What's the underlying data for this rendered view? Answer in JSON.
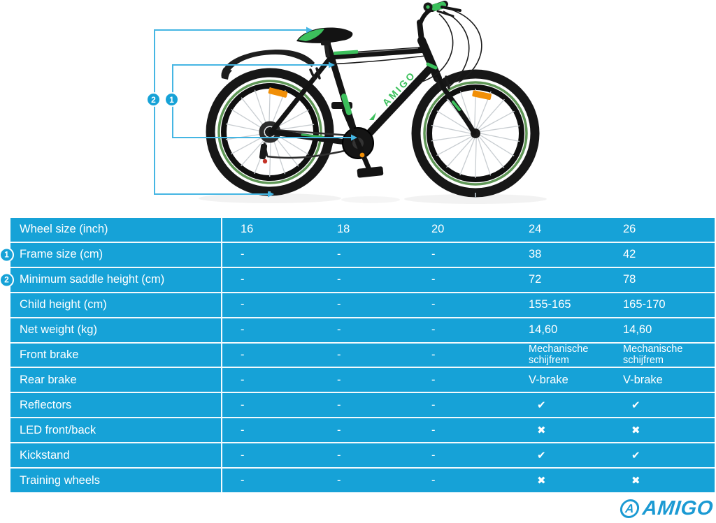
{
  "figure": {
    "frame_decal": "AMIGO",
    "marker_1": "1",
    "marker_2": "2"
  },
  "spec_table": {
    "rows": [
      {
        "label": "Wheel size (inch)",
        "badge": "",
        "values": [
          "16",
          "18",
          "20",
          "24",
          "26"
        ]
      },
      {
        "label": "Frame size (cm)",
        "badge": "1",
        "values": [
          "-",
          "-",
          "-",
          "38",
          "42"
        ]
      },
      {
        "label": "Minimum saddle height (cm)",
        "badge": "2",
        "values": [
          "-",
          "-",
          "-",
          "72",
          "78"
        ]
      },
      {
        "label": "Child height (cm)",
        "badge": "",
        "values": [
          "-",
          "-",
          "-",
          "155-165",
          "165-170"
        ]
      },
      {
        "label": "Net weight (kg)",
        "badge": "",
        "values": [
          "-",
          "-",
          "-",
          "14,60",
          "14,60"
        ]
      },
      {
        "label": "Front brake",
        "badge": "",
        "values": [
          "-",
          "-",
          "-",
          "Mechanische schijfrem",
          "Mechanische schijfrem"
        ]
      },
      {
        "label": "Rear brake",
        "badge": "",
        "values": [
          "-",
          "-",
          "-",
          "V-brake",
          "V-brake"
        ]
      },
      {
        "label": "Reflectors",
        "badge": "",
        "values": [
          "-",
          "-",
          "-",
          "✔",
          "✔"
        ]
      },
      {
        "label": "LED front/back",
        "badge": "",
        "values": [
          "-",
          "-",
          "-",
          "✖",
          "✖"
        ]
      },
      {
        "label": "Kickstand",
        "badge": "",
        "values": [
          "-",
          "-",
          "-",
          "✔",
          "✔"
        ]
      },
      {
        "label": "Training wheels",
        "badge": "",
        "values": [
          "-",
          "-",
          "-",
          "✖",
          "✖"
        ]
      }
    ]
  },
  "logo": {
    "mark_letter": "A",
    "wordmark": "AMIGO"
  },
  "colors": {
    "table_blue": "#16a2d7",
    "marker_line_blue": "#45b6e3",
    "accent_green": "#3cc05c",
    "rim_stripe_green": "#4e8c44",
    "reflector_orange": "#f18f07",
    "logo_blue": "#1b9ad3"
  }
}
